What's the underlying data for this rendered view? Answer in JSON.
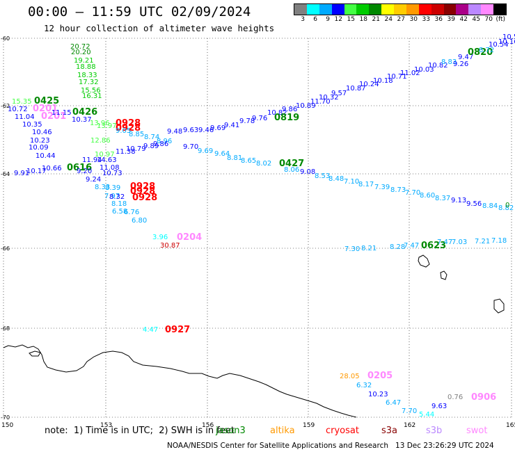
{
  "header": {
    "title": "00:00 – 11:59 UTC 02/09/2024",
    "subtitle": "12 hour collection of altimeter wave heights"
  },
  "legend": {
    "colors": [
      "#808080",
      "#00ffff",
      "#00aaff",
      "#0000ff",
      "#44ff44",
      "#00cc00",
      "#008800",
      "#ffff00",
      "#ffcc00",
      "#ff9900",
      "#ff0000",
      "#cc0000",
      "#880000",
      "#aa0088",
      "#bb88ff",
      "#ff88ff",
      "#000000"
    ],
    "labels": [
      "3",
      "6",
      "9",
      "12",
      "15",
      "18",
      "21",
      "24",
      "27",
      "30",
      "33",
      "36",
      "39",
      "42",
      "45",
      "70",
      "(ft)"
    ]
  },
  "axes": {
    "lon_labels": [
      "150",
      "153",
      "156",
      "159",
      "162",
      "165"
    ],
    "lat_labels": [
      "-60",
      "-62",
      "-64",
      "-66",
      "-68",
      "-70"
    ]
  },
  "observations": [
    {
      "t": "20.72",
      "c": "#008800"
    },
    {
      "t": "20.20",
      "c": "#008800"
    },
    {
      "t": "19.21",
      "c": "#00cc00"
    },
    {
      "t": "18.88",
      "c": "#00cc00"
    },
    {
      "t": "18.33",
      "c": "#00cc00"
    },
    {
      "t": "17.32",
      "c": "#00cc00"
    },
    {
      "t": "15.56",
      "c": "#00cc00"
    },
    {
      "t": "16.31",
      "c": "#00cc00"
    },
    {
      "t": "15.35",
      "c": "#44ff44"
    },
    {
      "t": "0425",
      "c": "#008800"
    },
    {
      "t": "10.72",
      "c": "#0000ff"
    },
    {
      "t": "0201",
      "c": "#ff88ff"
    },
    {
      "t": "11.04",
      "c": "#0000ff"
    },
    {
      "t": "0201",
      "c": "#ff88ff"
    },
    {
      "t": "11.15",
      "c": "#0000ff"
    },
    {
      "t": "0426",
      "c": "#008800"
    },
    {
      "t": "10.37",
      "c": "#0000ff"
    },
    {
      "t": "10.35",
      "c": "#0000ff"
    },
    {
      "t": "10.46",
      "c": "#0000ff"
    },
    {
      "t": "10.23",
      "c": "#0000ff"
    },
    {
      "t": "10.09",
      "c": "#0000ff"
    },
    {
      "t": "10.44",
      "c": "#0000ff"
    },
    {
      "t": "0616",
      "c": "#008800"
    },
    {
      "t": "9.20",
      "c": "#0000ff"
    },
    {
      "t": "9.24",
      "c": "#0000ff"
    },
    {
      "t": "9.91",
      "c": "#0000ff"
    },
    {
      "t": "10.17",
      "c": "#0000ff"
    },
    {
      "t": "10.66",
      "c": "#0000ff"
    },
    {
      "t": "11.94",
      "c": "#0000ff"
    },
    {
      "t": "14.63",
      "c": "#0000ff"
    },
    {
      "t": "11.08",
      "c": "#0000ff"
    },
    {
      "t": "10.73",
      "c": "#0000ff"
    },
    {
      "t": "13.96",
      "c": "#44ff44"
    },
    {
      "t": "13.97",
      "c": "#44ff44"
    },
    {
      "t": "12.86",
      "c": "#44ff44"
    },
    {
      "t": "10.97",
      "c": "#44ff44"
    },
    {
      "t": "0928",
      "c": "#ff0000"
    },
    {
      "t": "0928",
      "c": "#ff0000"
    },
    {
      "t": "9.05",
      "c": "#00aaff"
    },
    {
      "t": "8.85",
      "c": "#00aaff"
    },
    {
      "t": "8.74",
      "c": "#00aaff"
    },
    {
      "t": "8.96",
      "c": "#00aaff"
    },
    {
      "t": "11.38",
      "c": "#0000ff"
    },
    {
      "t": "10.79",
      "c": "#0000ff"
    },
    {
      "t": "9.89",
      "c": "#0000ff"
    },
    {
      "t": "9.86",
      "c": "#0000ff"
    },
    {
      "t": "9.70",
      "c": "#0000ff"
    },
    {
      "t": "9.69",
      "c": "#00aaff"
    },
    {
      "t": "9.64",
      "c": "#00aaff"
    },
    {
      "t": "8.81",
      "c": "#00aaff"
    },
    {
      "t": "8.65",
      "c": "#00aaff"
    },
    {
      "t": "8.02",
      "c": "#00aaff"
    },
    {
      "t": "0427",
      "c": "#008800"
    },
    {
      "t": "8.06",
      "c": "#00aaff"
    },
    {
      "t": "9.08",
      "c": "#0000ff"
    },
    {
      "t": "8.53",
      "c": "#00aaff"
    },
    {
      "t": "8.48",
      "c": "#00aaff"
    },
    {
      "t": "7.10",
      "c": "#00aaff"
    },
    {
      "t": "8.17",
      "c": "#00aaff"
    },
    {
      "t": "7.39",
      "c": "#00aaff"
    },
    {
      "t": "8.73",
      "c": "#00aaff"
    },
    {
      "t": "7.70",
      "c": "#00aaff"
    },
    {
      "t": "8.60",
      "c": "#00aaff"
    },
    {
      "t": "8.37",
      "c": "#00aaff"
    },
    {
      "t": "9.13",
      "c": "#0000ff"
    },
    {
      "t": "9.56",
      "c": "#0000ff"
    },
    {
      "t": "8.84",
      "c": "#00aaff"
    },
    {
      "t": "8.82",
      "c": "#00aaff"
    },
    {
      "t": "0",
      "c": "#008800"
    },
    {
      "t": "8.33",
      "c": "#00aaff"
    },
    {
      "t": "8.39",
      "c": "#00aaff"
    },
    {
      "t": "0928",
      "c": "#ff0000"
    },
    {
      "t": "0928",
      "c": "#ff0000"
    },
    {
      "t": "0928",
      "c": "#ff0000"
    },
    {
      "t": "7.97",
      "c": "#00aaff"
    },
    {
      "t": "8.32",
      "c": "#0000ff"
    },
    {
      "t": "8.18",
      "c": "#00aaff"
    },
    {
      "t": "6.58",
      "c": "#00aaff"
    },
    {
      "t": "6.76",
      "c": "#00aaff"
    },
    {
      "t": "6.80",
      "c": "#00aaff"
    },
    {
      "t": "3.96",
      "c": "#00ffff"
    },
    {
      "t": "0204",
      "c": "#ff88ff"
    },
    {
      "t": "30.87",
      "c": "#cc0000"
    },
    {
      "t": "4.47",
      "c": "#00ffff"
    },
    {
      "t": "0927",
      "c": "#ff0000"
    },
    {
      "t": "9.48",
      "c": "#0000ff"
    },
    {
      "t": "9.63",
      "c": "#0000ff"
    },
    {
      "t": "9.46",
      "c": "#0000ff"
    },
    {
      "t": "9.69",
      "c": "#0000ff"
    },
    {
      "t": "9.41",
      "c": "#0000ff"
    },
    {
      "t": "9.78",
      "c": "#0000ff"
    },
    {
      "t": "9.76",
      "c": "#0000ff"
    },
    {
      "t": "10.82",
      "c": "#0000ff"
    },
    {
      "t": "0819",
      "c": "#008800"
    },
    {
      "t": "9.86",
      "c": "#0000ff"
    },
    {
      "t": "10.89",
      "c": "#0000ff"
    },
    {
      "t": "11.70",
      "c": "#0000ff"
    },
    {
      "t": "10.32",
      "c": "#0000ff"
    },
    {
      "t": "9.57",
      "c": "#0000ff"
    },
    {
      "t": "10.87",
      "c": "#0000ff"
    },
    {
      "t": "10.24",
      "c": "#0000ff"
    },
    {
      "t": "10.18",
      "c": "#0000ff"
    },
    {
      "t": "10.71",
      "c": "#0000ff"
    },
    {
      "t": "11.02",
      "c": "#0000ff"
    },
    {
      "t": "10.03",
      "c": "#0000ff"
    },
    {
      "t": "10.82",
      "c": "#0000ff"
    },
    {
      "t": "8.83",
      "c": "#00aaff"
    },
    {
      "t": "9.47",
      "c": "#0000ff"
    },
    {
      "t": "9.26",
      "c": "#0000ff"
    },
    {
      "t": "0820",
      "c": "#008800"
    },
    {
      "t": "8.72",
      "c": "#00aaff"
    },
    {
      "t": "10.54",
      "c": "#0000ff"
    },
    {
      "t": "10.16",
      "c": "#0000ff"
    },
    {
      "t": "10.58",
      "c": "#0000ff"
    },
    {
      "t": "7.30",
      "c": "#00aaff"
    },
    {
      "t": "8.21",
      "c": "#00aaff"
    },
    {
      "t": "8.28",
      "c": "#00aaff"
    },
    {
      "t": "7.47",
      "c": "#00aaff"
    },
    {
      "t": "0623",
      "c": "#008800"
    },
    {
      "t": "7.47",
      "c": "#00aaff"
    },
    {
      "t": "7.03",
      "c": "#00aaff"
    },
    {
      "t": "7.21",
      "c": "#00aaff"
    },
    {
      "t": "7.18",
      "c": "#00aaff"
    },
    {
      "t": "28.05",
      "c": "#ff9900"
    },
    {
      "t": "0205",
      "c": "#ff88ff"
    },
    {
      "t": "6.32",
      "c": "#00aaff"
    },
    {
      "t": "10.23",
      "c": "#0000ff"
    },
    {
      "t": "6.47",
      "c": "#00aaff"
    },
    {
      "t": "9.63",
      "c": "#0000ff"
    },
    {
      "t": "0.76",
      "c": "#808080"
    },
    {
      "t": "0906",
      "c": "#ff88ff"
    },
    {
      "t": "7.70",
      "c": "#00aaff"
    },
    {
      "t": "5.44",
      "c": "#00ffff"
    }
  ],
  "note": "note:  1) Time is in UTC;  2) SWH is in feet",
  "missions": [
    {
      "name": "jason3",
      "color": "#008800"
    },
    {
      "name": "altika",
      "color": "#ff9900"
    },
    {
      "name": "cryosat",
      "color": "#ff0000"
    },
    {
      "name": "s3a",
      "color": "#880000"
    },
    {
      "name": "s3b",
      "color": "#bb88ff"
    },
    {
      "name": "swot",
      "color": "#ff88ff"
    }
  ],
  "footer": {
    "credit": "NOAA/NESDIS Center for Satellite Applications and Research",
    "timestamp": "13 Dec 23:26:29 UTC 2024"
  }
}
